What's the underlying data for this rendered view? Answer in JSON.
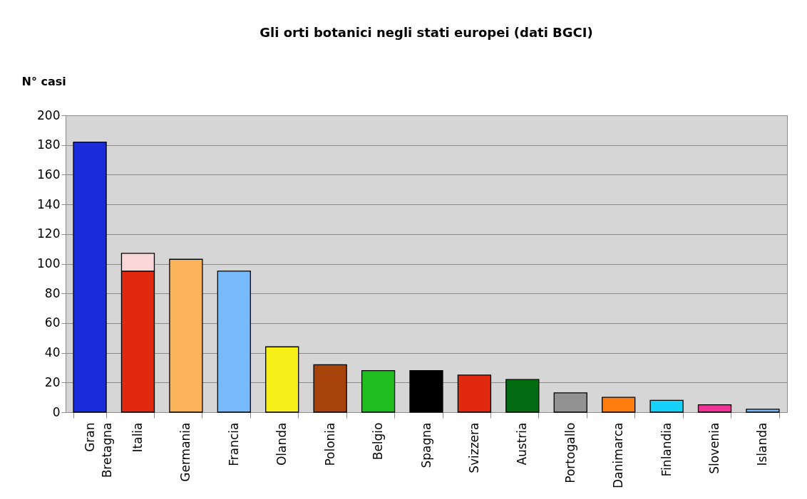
{
  "chart_data": {
    "type": "bar",
    "title": "Gli orti botanici negli stati europei (dati BGCI)",
    "ylabel": "N° casi",
    "categories": [
      "Gran Bretagna",
      "Italia",
      "Germania",
      "Francia",
      "Olanda",
      "Polonia",
      "Belgio",
      "Spagna",
      "Svizzera",
      "Austria",
      "Portogallo",
      "Danimarca",
      "Finlandia",
      "Slovenia",
      "Islanda"
    ],
    "stacked": true,
    "series": [
      {
        "values": [
          182,
          95,
          103,
          95,
          44,
          32,
          28,
          28,
          25,
          22,
          13,
          10,
          8,
          5,
          2
        ],
        "colors": [
          "#1a2bd9",
          "#e0290f",
          "#fbb45c",
          "#78b9fa",
          "#f7ef18",
          "#a6420a",
          "#20bd20",
          "#000000",
          "#e0290f",
          "#036b12",
          "#929292",
          "#fd7c0e",
          "#16d2fb",
          "#ef3496",
          "#78b9fa"
        ]
      },
      {
        "values": [
          null,
          12,
          null,
          null,
          null,
          null,
          null,
          null,
          null,
          null,
          null,
          null,
          null,
          null,
          null
        ],
        "colors": [
          null,
          "#f9d6d8",
          null,
          null,
          null,
          null,
          null,
          null,
          null,
          null,
          null,
          null,
          null,
          null,
          null
        ]
      }
    ],
    "ylim": [
      0,
      200
    ],
    "yticks": [
      0,
      20,
      40,
      60,
      80,
      100,
      120,
      140,
      160,
      180,
      200
    ],
    "grid": "y"
  }
}
